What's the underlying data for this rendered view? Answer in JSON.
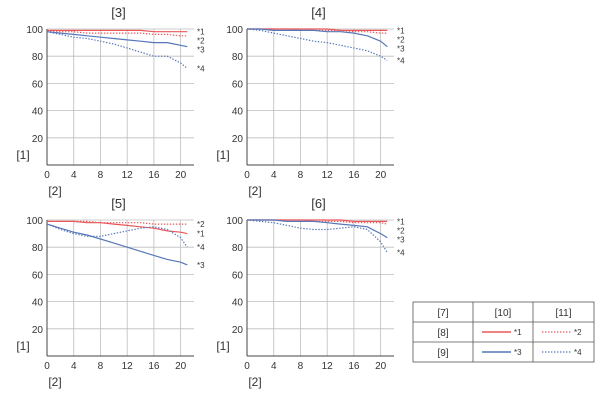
{
  "chart_data": [
    {
      "type": "line",
      "title": "[3]",
      "ylabel": "[1]",
      "xlabel": "[2]",
      "xlim": [
        0,
        22
      ],
      "ylim": [
        0,
        100
      ],
      "x_ticks": [
        0,
        4,
        8,
        12,
        16,
        20
      ],
      "y_ticks": [
        20,
        40,
        60,
        80,
        100
      ],
      "series": [
        {
          "name": "*1",
          "x": [
            0,
            2,
            4,
            6,
            8,
            10,
            12,
            14,
            16,
            18,
            20,
            21
          ],
          "y": [
            99,
            99,
            99,
            99,
            99,
            99,
            99,
            99,
            98,
            98,
            98,
            98
          ]
        },
        {
          "name": "*2",
          "x": [
            0,
            2,
            4,
            6,
            8,
            10,
            12,
            14,
            16,
            18,
            20,
            21
          ],
          "y": [
            98,
            98,
            98,
            97,
            97,
            97,
            97,
            97,
            96,
            96,
            95,
            95
          ]
        },
        {
          "name": "*3",
          "x": [
            0,
            2,
            4,
            6,
            8,
            10,
            12,
            14,
            16,
            18,
            20,
            21
          ],
          "y": [
            98,
            97,
            96,
            95,
            94,
            93,
            92,
            91,
            90,
            90,
            88,
            87
          ]
        },
        {
          "name": "*4",
          "x": [
            0,
            2,
            4,
            6,
            8,
            10,
            12,
            14,
            16,
            18,
            20,
            21
          ],
          "y": [
            98,
            96,
            94,
            93,
            91,
            89,
            86,
            83,
            80,
            80,
            75,
            71
          ]
        }
      ]
    },
    {
      "type": "line",
      "title": "[4]",
      "ylabel": "[1]",
      "xlabel": "[2]",
      "xlim": [
        0,
        22
      ],
      "ylim": [
        0,
        100
      ],
      "x_ticks": [
        0,
        4,
        8,
        12,
        16,
        20
      ],
      "y_ticks": [
        20,
        40,
        60,
        80,
        100
      ],
      "series": [
        {
          "name": "*1",
          "x": [
            0,
            2,
            4,
            6,
            8,
            10,
            12,
            14,
            16,
            18,
            20,
            21
          ],
          "y": [
            100,
            100,
            100,
            100,
            100,
            100,
            100,
            99,
            99,
            99,
            99,
            99
          ]
        },
        {
          "name": "*2",
          "x": [
            0,
            2,
            4,
            6,
            8,
            10,
            12,
            14,
            16,
            18,
            20,
            21
          ],
          "y": [
            100,
            100,
            100,
            100,
            99,
            99,
            99,
            99,
            98,
            98,
            97,
            97
          ]
        },
        {
          "name": "*3",
          "x": [
            0,
            2,
            4,
            6,
            8,
            10,
            12,
            14,
            16,
            18,
            20,
            21
          ],
          "y": [
            100,
            100,
            99,
            99,
            99,
            99,
            98,
            98,
            97,
            95,
            91,
            87
          ]
        },
        {
          "name": "*4",
          "x": [
            0,
            2,
            4,
            6,
            8,
            10,
            12,
            14,
            16,
            18,
            20,
            21
          ],
          "y": [
            100,
            99,
            97,
            95,
            93,
            91,
            90,
            88,
            86,
            84,
            80,
            77
          ]
        }
      ]
    },
    {
      "type": "line",
      "title": "[5]",
      "ylabel": "[1]",
      "xlabel": "[2]",
      "xlim": [
        0,
        22
      ],
      "ylim": [
        0,
        100
      ],
      "x_ticks": [
        0,
        4,
        8,
        12,
        16,
        20
      ],
      "y_ticks": [
        20,
        40,
        60,
        80,
        100
      ],
      "series": [
        {
          "name": "*1",
          "x": [
            0,
            2,
            4,
            6,
            8,
            10,
            12,
            14,
            16,
            18,
            20,
            21
          ],
          "y": [
            99,
            99,
            99,
            98,
            98,
            97,
            96,
            95,
            94,
            92,
            91,
            90
          ]
        },
        {
          "name": "*2",
          "x": [
            0,
            2,
            4,
            6,
            8,
            10,
            12,
            14,
            16,
            18,
            20,
            21
          ],
          "y": [
            99,
            99,
            99,
            99,
            98,
            98,
            98,
            98,
            97,
            97,
            97,
            97
          ]
        },
        {
          "name": "*3",
          "x": [
            0,
            2,
            4,
            6,
            8,
            10,
            12,
            14,
            16,
            18,
            20,
            21
          ],
          "y": [
            97,
            94,
            91,
            89,
            86,
            83,
            80,
            77,
            74,
            71,
            69,
            67
          ]
        },
        {
          "name": "*4",
          "x": [
            0,
            2,
            4,
            6,
            8,
            10,
            12,
            14,
            16,
            18,
            20,
            21
          ],
          "y": [
            97,
            93,
            90,
            88,
            88,
            90,
            92,
            94,
            95,
            93,
            87,
            80
          ]
        }
      ]
    },
    {
      "type": "line",
      "title": "[6]",
      "ylabel": "[1]",
      "xlabel": "[2]",
      "xlim": [
        0,
        22
      ],
      "ylim": [
        0,
        100
      ],
      "x_ticks": [
        0,
        4,
        8,
        12,
        16,
        20
      ],
      "y_ticks": [
        20,
        40,
        60,
        80,
        100
      ],
      "series": [
        {
          "name": "*1",
          "x": [
            0,
            2,
            4,
            6,
            8,
            10,
            12,
            14,
            16,
            18,
            20,
            21
          ],
          "y": [
            100,
            100,
            100,
            100,
            100,
            100,
            100,
            100,
            99,
            99,
            99,
            99
          ]
        },
        {
          "name": "*2",
          "x": [
            0,
            2,
            4,
            6,
            8,
            10,
            12,
            14,
            16,
            18,
            20,
            21
          ],
          "y": [
            100,
            100,
            100,
            100,
            100,
            99,
            99,
            99,
            98,
            98,
            98,
            97
          ]
        },
        {
          "name": "*3",
          "x": [
            0,
            2,
            4,
            6,
            8,
            10,
            12,
            14,
            16,
            18,
            20,
            21
          ],
          "y": [
            100,
            100,
            100,
            99,
            99,
            99,
            98,
            97,
            96,
            95,
            90,
            87
          ]
        },
        {
          "name": "*4",
          "x": [
            0,
            2,
            4,
            6,
            8,
            10,
            12,
            14,
            16,
            18,
            20,
            21
          ],
          "y": [
            100,
            99,
            98,
            96,
            94,
            93,
            93,
            94,
            95,
            93,
            84,
            76
          ]
        }
      ]
    }
  ],
  "series_styles": [
    {
      "name": "*1",
      "color": "#e8585a",
      "dash": "solid"
    },
    {
      "name": "*2",
      "color": "#e8585a",
      "dash": "dotted"
    },
    {
      "name": "*3",
      "color": "#5577b8",
      "dash": "solid"
    },
    {
      "name": "*4",
      "color": "#5577b8",
      "dash": "dotted"
    }
  ],
  "legend": {
    "headers": [
      "[7]",
      "[10]",
      "[11]"
    ],
    "rows": [
      {
        "label": "[8]",
        "solid": "*1",
        "dotted": "*2",
        "color": "#e8585a"
      },
      {
        "label": "[9]",
        "solid": "*3",
        "dotted": "*4",
        "color": "#5577b8"
      }
    ]
  }
}
